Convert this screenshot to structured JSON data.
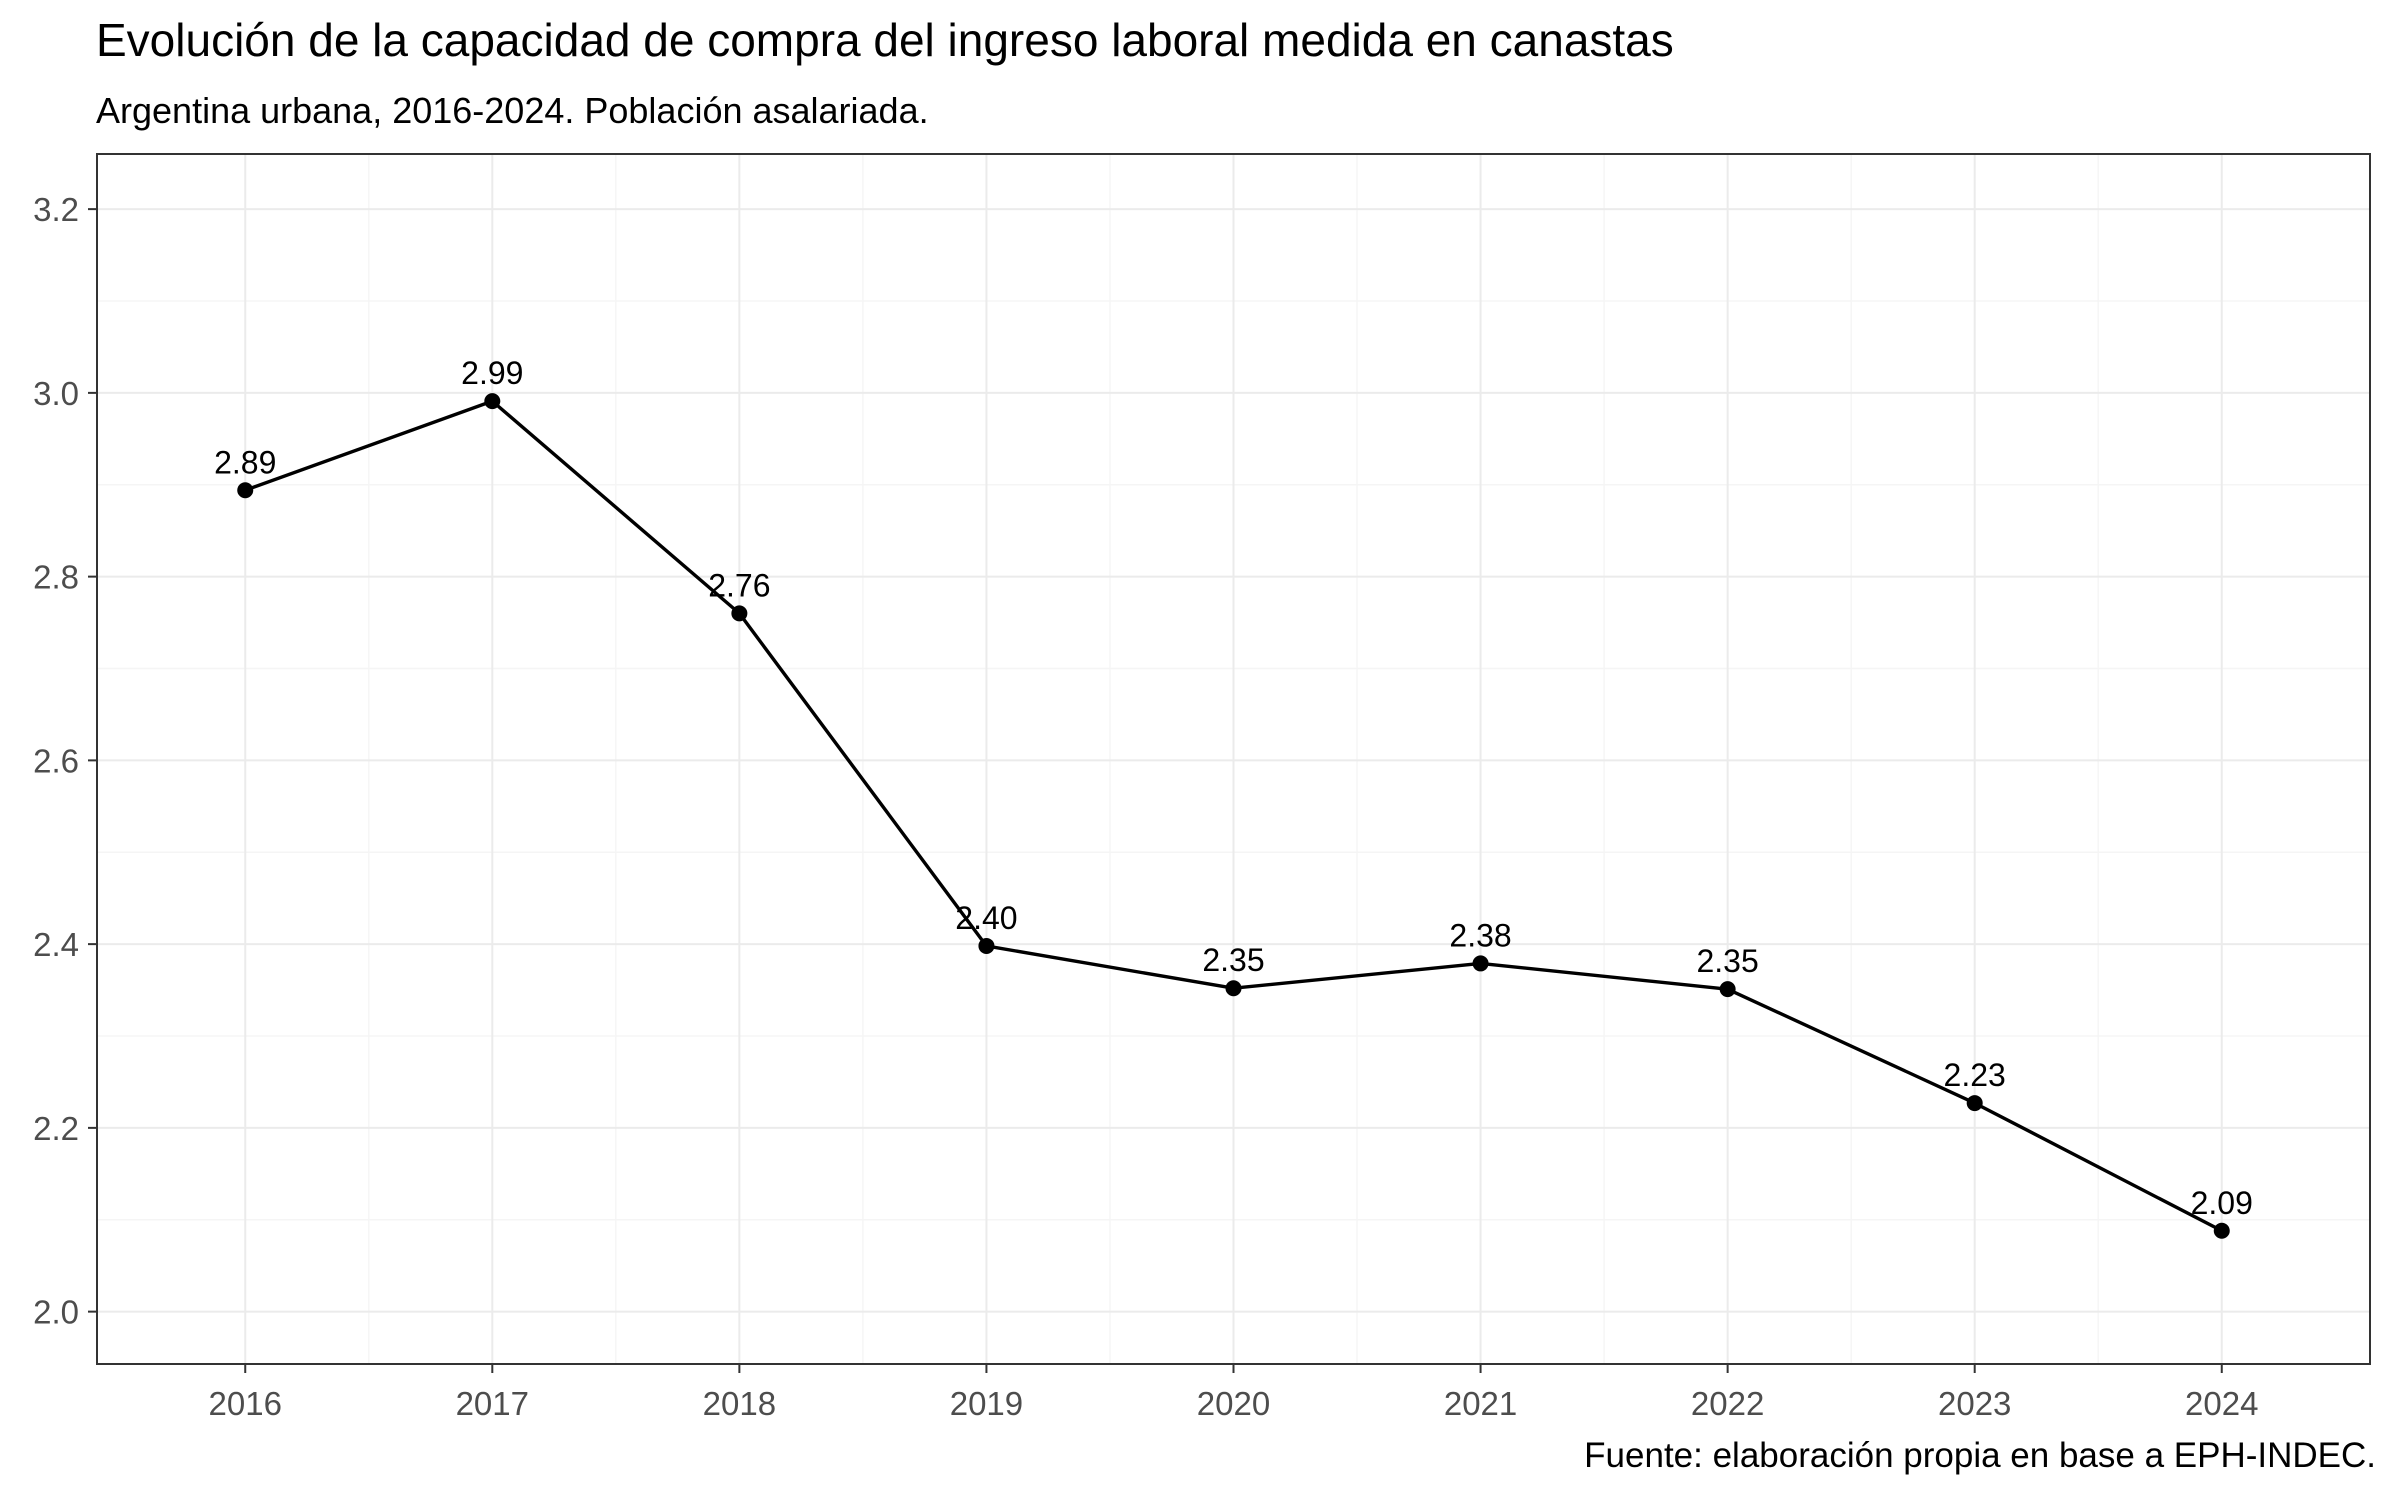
{
  "chart_data": {
    "type": "line",
    "title": "Evolución de la capacidad de compra del ingreso laboral medida en canastas",
    "subtitle": "Argentina urbana, 2016-2024. Población asalariada.",
    "caption": "Fuente: elaboración propia en base a EPH-INDEC.",
    "xlabel": "",
    "ylabel": "",
    "x": [
      2016,
      2017,
      2018,
      2019,
      2020,
      2021,
      2022,
      2023,
      2024
    ],
    "x_tick_labels": [
      "2016",
      "2017",
      "2018",
      "2019",
      "2020",
      "2021",
      "2022",
      "2023",
      "2024"
    ],
    "values": [
      2.894,
      2.991,
      2.76,
      2.398,
      2.352,
      2.379,
      2.351,
      2.227,
      2.088
    ],
    "data_labels": [
      "2.89",
      "2.99",
      "2.76",
      "2.40",
      "2.35",
      "2.38",
      "2.35",
      "2.23",
      "2.09"
    ],
    "y_ticks": [
      2.0,
      2.2,
      2.4,
      2.6,
      2.8,
      3.0,
      3.2
    ],
    "y_tick_labels": [
      "2.0",
      "2.2",
      "2.4",
      "2.6",
      "2.8",
      "3.0",
      "3.2"
    ],
    "ylim": [
      1.943,
      3.26
    ],
    "xlim": [
      2015.4,
      2024.6
    ],
    "grid": true,
    "legend": "none",
    "colors": {
      "line": "#000000",
      "points": "#000000",
      "grid": "#ebebeb",
      "panel_border": "#333333",
      "tick_labels": "#4d4d4d"
    }
  }
}
